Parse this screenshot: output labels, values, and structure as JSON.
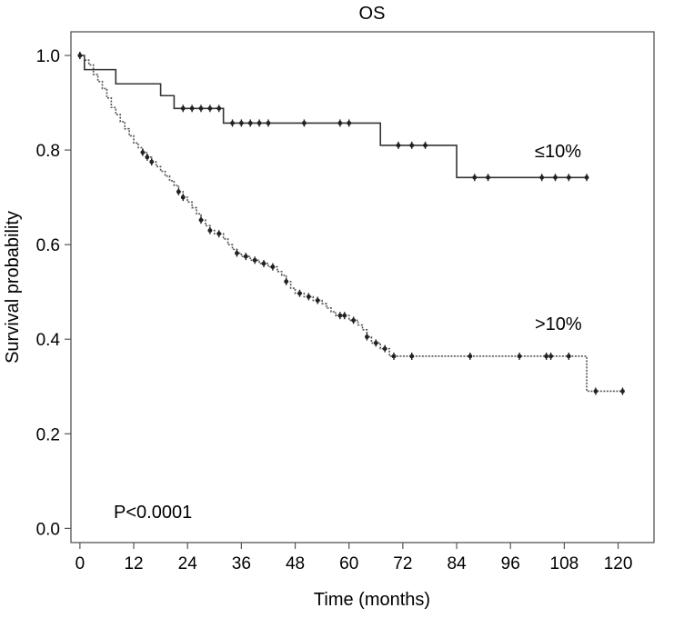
{
  "chart_data": {
    "type": "line",
    "title": "OS",
    "xlabel": "Time (months)",
    "ylabel": "Survival probability",
    "xlim": [
      -2,
      128
    ],
    "ylim": [
      -0.03,
      1.05
    ],
    "xticks": [
      0,
      12,
      24,
      36,
      48,
      60,
      72,
      84,
      96,
      108,
      120
    ],
    "yticks": [
      0.0,
      0.2,
      0.4,
      0.6,
      0.8,
      1.0
    ],
    "ytick_labels": [
      "0.0",
      "0.2",
      "0.4",
      "0.6",
      "0.8",
      "1.0"
    ],
    "grid": false,
    "annotation": "P<0.0001",
    "series": [
      {
        "name": "≤10%",
        "color": "#333333",
        "line_style": "solid",
        "steps": [
          [
            0,
            1.0
          ],
          [
            1,
            0.97
          ],
          [
            8,
            0.94
          ],
          [
            18,
            0.915
          ],
          [
            21,
            0.888
          ],
          [
            32,
            0.857
          ],
          [
            67,
            0.81
          ],
          [
            84,
            0.742
          ],
          [
            113,
            0.742
          ]
        ],
        "censored": [
          [
            0,
            1.0
          ],
          [
            23,
            0.888
          ],
          [
            25,
            0.888
          ],
          [
            27,
            0.888
          ],
          [
            29,
            0.888
          ],
          [
            31,
            0.888
          ],
          [
            34,
            0.857
          ],
          [
            36,
            0.857
          ],
          [
            38,
            0.857
          ],
          [
            40,
            0.857
          ],
          [
            42,
            0.857
          ],
          [
            50,
            0.857
          ],
          [
            58,
            0.857
          ],
          [
            60,
            0.857
          ],
          [
            71,
            0.81
          ],
          [
            74,
            0.81
          ],
          [
            77,
            0.81
          ],
          [
            88,
            0.742
          ],
          [
            91,
            0.742
          ],
          [
            103,
            0.742
          ],
          [
            106,
            0.742
          ],
          [
            109,
            0.742
          ],
          [
            113,
            0.742
          ]
        ]
      },
      {
        "name": ">10%",
        "color": "#555555",
        "line_style": "dotted",
        "steps": [
          [
            0,
            1.0
          ],
          [
            1,
            0.99
          ],
          [
            2,
            0.98
          ],
          [
            3,
            0.96
          ],
          [
            4,
            0.945
          ],
          [
            5,
            0.93
          ],
          [
            6,
            0.91
          ],
          [
            7,
            0.89
          ],
          [
            8,
            0.875
          ],
          [
            9,
            0.86
          ],
          [
            10,
            0.845
          ],
          [
            11,
            0.83
          ],
          [
            12,
            0.815
          ],
          [
            13,
            0.805
          ],
          [
            14,
            0.795
          ],
          [
            15,
            0.785
          ],
          [
            16,
            0.775
          ],
          [
            17,
            0.765
          ],
          [
            18,
            0.755
          ],
          [
            19,
            0.745
          ],
          [
            20,
            0.735
          ],
          [
            21,
            0.725
          ],
          [
            22,
            0.712
          ],
          [
            23,
            0.7
          ],
          [
            24,
            0.69
          ],
          [
            25,
            0.678
          ],
          [
            26,
            0.665
          ],
          [
            27,
            0.652
          ],
          [
            28,
            0.64
          ],
          [
            29,
            0.63
          ],
          [
            30,
            0.623
          ],
          [
            32,
            0.612
          ],
          [
            33,
            0.6
          ],
          [
            34,
            0.59
          ],
          [
            35,
            0.582
          ],
          [
            36,
            0.575
          ],
          [
            38,
            0.567
          ],
          [
            40,
            0.56
          ],
          [
            42,
            0.553
          ],
          [
            44,
            0.543
          ],
          [
            45,
            0.535
          ],
          [
            46,
            0.522
          ],
          [
            47,
            0.508
          ],
          [
            48,
            0.497
          ],
          [
            50,
            0.49
          ],
          [
            52,
            0.482
          ],
          [
            54,
            0.475
          ],
          [
            55,
            0.466
          ],
          [
            56,
            0.458
          ],
          [
            57,
            0.45
          ],
          [
            60,
            0.44
          ],
          [
            62,
            0.43
          ],
          [
            63,
            0.42
          ],
          [
            64,
            0.405
          ],
          [
            65,
            0.392
          ],
          [
            67,
            0.38
          ],
          [
            69,
            0.364
          ],
          [
            113,
            0.364
          ],
          [
            113,
            0.29
          ],
          [
            121,
            0.29
          ]
        ],
        "censored": [
          [
            0,
            1.0
          ],
          [
            14,
            0.795
          ],
          [
            15,
            0.785
          ],
          [
            16,
            0.775
          ],
          [
            22,
            0.712
          ],
          [
            23,
            0.7
          ],
          [
            27,
            0.652
          ],
          [
            29,
            0.63
          ],
          [
            31,
            0.623
          ],
          [
            35,
            0.582
          ],
          [
            37,
            0.575
          ],
          [
            39,
            0.567
          ],
          [
            41,
            0.56
          ],
          [
            43,
            0.553
          ],
          [
            46,
            0.522
          ],
          [
            49,
            0.497
          ],
          [
            51,
            0.49
          ],
          [
            53,
            0.482
          ],
          [
            58,
            0.45
          ],
          [
            59,
            0.45
          ],
          [
            61,
            0.44
          ],
          [
            64,
            0.405
          ],
          [
            66,
            0.392
          ],
          [
            68,
            0.38
          ],
          [
            70,
            0.364
          ],
          [
            74,
            0.364
          ],
          [
            87,
            0.364
          ],
          [
            98,
            0.364
          ],
          [
            104,
            0.364
          ],
          [
            105,
            0.364
          ],
          [
            109,
            0.364
          ],
          [
            115,
            0.29
          ],
          [
            121,
            0.29
          ]
        ]
      }
    ]
  }
}
